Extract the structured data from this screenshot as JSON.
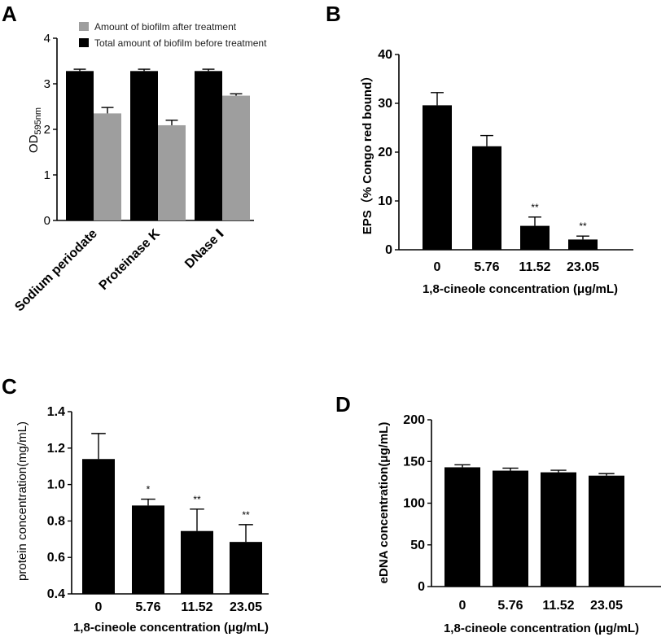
{
  "figure": {
    "panel_labels": [
      "A",
      "B",
      "C",
      "D"
    ]
  },
  "chart_data": [
    {
      "panel": "A",
      "type": "bar",
      "categories": [
        "Sodium periodate",
        "Proteinase K",
        "DNase Ⅰ"
      ],
      "series": [
        {
          "name": "Total amount of biofilm before treatment",
          "color": "#000000",
          "values": [
            3.28,
            3.28,
            3.28
          ],
          "errors": [
            0.04,
            0.04,
            0.04
          ]
        },
        {
          "name": "Amount of biofilm after treatment",
          "color": "#9e9e9e",
          "values": [
            2.35,
            2.09,
            2.74
          ],
          "errors": [
            0.13,
            0.11,
            0.04
          ]
        }
      ],
      "legend": [
        "Amount of biofilm after treatment",
        "Total amount of biofilm before treatment"
      ],
      "ylabel": "OD",
      "ylabel_sub": "595nm",
      "xlabel": "",
      "ylim": [
        0,
        4
      ],
      "yticks": [
        "0",
        "1",
        "2",
        "3",
        "4"
      ]
    },
    {
      "panel": "B",
      "type": "bar",
      "categories": [
        "0",
        "5.76",
        "11.52",
        "23.05"
      ],
      "values": [
        29.6,
        21.2,
        4.9,
        2.1
      ],
      "errors": [
        2.6,
        2.2,
        1.8,
        0.7
      ],
      "annotations": [
        "",
        "",
        "**",
        "**"
      ],
      "ylabel": "EPS（% Congo red bound）",
      "xlabel": "1,8-cineole concentration (μg/mL)",
      "ylim": [
        0,
        40
      ],
      "yticks": [
        "0",
        "10",
        "20",
        "30",
        "40"
      ]
    },
    {
      "panel": "C",
      "type": "bar",
      "categories": [
        "0",
        "5.76",
        "11.52",
        "23.05"
      ],
      "values": [
        1.14,
        0.885,
        0.745,
        0.685
      ],
      "errors": [
        0.14,
        0.035,
        0.12,
        0.095
      ],
      "annotations": [
        "",
        "*",
        "**",
        "**"
      ],
      "ylabel": "protein concentration(mg/mL)",
      "xlabel": "1,8-cineole concentration (μg/mL)",
      "ylim": [
        0.4,
        1.4
      ],
      "yticks": [
        "0.4",
        "0.6",
        "0.8",
        "1.0",
        "1.2",
        "1.4"
      ]
    },
    {
      "panel": "D",
      "type": "bar",
      "categories": [
        "0",
        "5.76",
        "11.52",
        "23.05"
      ],
      "values": [
        143,
        139,
        137,
        133
      ],
      "errors": [
        3,
        3,
        2.5,
        2.5
      ],
      "annotations": [
        "",
        "",
        "",
        ""
      ],
      "ylabel": "eDNA concentration(μg/mL)",
      "xlabel": "1,8-cineole concentration (μg/mL)",
      "ylim": [
        0,
        200
      ],
      "yticks": [
        "0",
        "50",
        "100",
        "150",
        "200"
      ]
    }
  ]
}
